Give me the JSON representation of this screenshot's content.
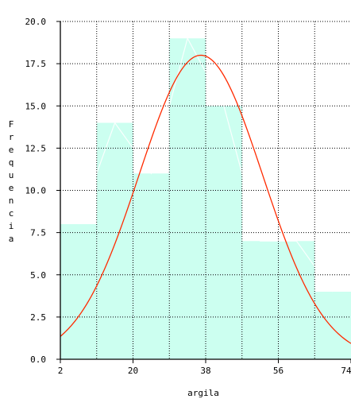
{
  "chart_data": {
    "type": "bar",
    "title": "",
    "xlabel": "argila",
    "ylabel": "Frequencia",
    "x_ticks": [
      "2",
      "20",
      "38",
      "56",
      "74"
    ],
    "y_ticks": [
      "0.0",
      "2.5",
      "5.0",
      "7.5",
      "10.0",
      "12.5",
      "15.0",
      "17.5",
      "20.0"
    ],
    "xlim": [
      2,
      74
    ],
    "ylim": [
      0,
      20
    ],
    "grid": true,
    "bins": [
      {
        "start": 2,
        "end": 11,
        "count": 8
      },
      {
        "start": 11,
        "end": 20,
        "count": 14
      },
      {
        "start": 20,
        "end": 29,
        "count": 11
      },
      {
        "start": 29,
        "end": 38,
        "count": 19
      },
      {
        "start": 38,
        "end": 47,
        "count": 15
      },
      {
        "start": 47,
        "end": 56,
        "count": 7
      },
      {
        "start": 56,
        "end": 65,
        "count": 7
      },
      {
        "start": 65,
        "end": 74,
        "count": 4
      }
    ],
    "normal_curve": {
      "mean": 36.8,
      "sd": 15.3,
      "peak": 18.0,
      "color": "#ff2a00"
    },
    "bar_color": "#ccfff0",
    "outline_color": "#ffffff"
  }
}
